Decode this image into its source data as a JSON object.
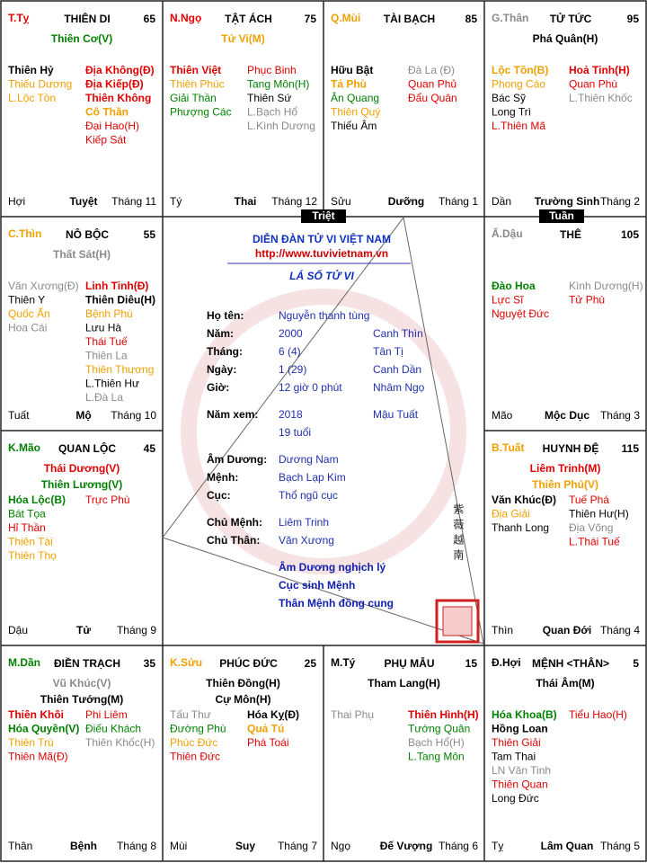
{
  "palaces": [
    {
      "canchi": {
        "text": "T.Tỵ",
        "color": "#e00000"
      },
      "name": "THIÊN DI",
      "number": 65,
      "main": [
        {
          "text": "Thiên Cơ(V)",
          "color": "#008000"
        }
      ],
      "left": [
        {
          "text": "Thiên Hỷ",
          "color": "#000000",
          "bold": true
        },
        {
          "text": "Thiếu Dương",
          "color": "#f0a000"
        },
        {
          "text": "L.Lộc Tồn",
          "color": "#f0a000"
        }
      ],
      "right": [
        {
          "text": "Địa Không(Đ)",
          "color": "#e00000",
          "bold": true
        },
        {
          "text": "Địa Kiếp(Đ)",
          "color": "#e00000",
          "bold": true
        },
        {
          "text": "Thiên Không",
          "color": "#e00000",
          "bold": true
        },
        {
          "text": "Cô Thần",
          "color": "#f0a000",
          "bold": true
        },
        {
          "text": "Đại Hao(H)",
          "color": "#e00000"
        },
        {
          "text": "Kiếp Sát",
          "color": "#e00000"
        }
      ],
      "branch": "Hợi",
      "stage": "Tuyệt",
      "month": "Tháng 11"
    },
    {
      "canchi": {
        "text": "N.Ngọ",
        "color": "#e00000"
      },
      "name": "TẬT ÁCH",
      "number": 75,
      "main": [
        {
          "text": "Tử Vi(M)",
          "color": "#f0a000"
        }
      ],
      "left": [
        {
          "text": "Thiên Việt",
          "color": "#e00000",
          "bold": true
        },
        {
          "text": "Thiên Phúc",
          "color": "#f0a000"
        },
        {
          "text": "Giải Thần",
          "color": "#008000"
        },
        {
          "text": "Phượng Các",
          "color": "#008000"
        }
      ],
      "right": [
        {
          "text": "Phục Binh",
          "color": "#e00000"
        },
        {
          "text": "Tang Môn(H)",
          "color": "#008000"
        },
        {
          "text": "Thiên Sứ",
          "color": "#000000"
        },
        {
          "text": "L.Bạch Hổ",
          "color": "#8a8a8a"
        },
        {
          "text": "L.Kình Dương",
          "color": "#8a8a8a"
        }
      ],
      "branch": "Tý",
      "stage": "Thai",
      "month": "Tháng 12"
    },
    {
      "canchi": {
        "text": "Q.Mùi",
        "color": "#f0a000"
      },
      "name": "TÀI BẠCH",
      "number": 85,
      "main": [],
      "left": [
        {
          "text": "Hữu Bật",
          "color": "#000000",
          "bold": true
        },
        {
          "text": "Tả Phù",
          "color": "#f0a000",
          "bold": true
        },
        {
          "text": "Ân Quang",
          "color": "#008000"
        },
        {
          "text": "Thiên Quý",
          "color": "#f0a000"
        },
        {
          "text": "Thiếu Âm",
          "color": "#000000"
        }
      ],
      "right": [
        {
          "text": "Đà La (Đ)",
          "color": "#8a8a8a"
        },
        {
          "text": "Quan Phủ",
          "color": "#e00000"
        },
        {
          "text": "Đẩu Quân",
          "color": "#e00000"
        }
      ],
      "branch": "Sửu",
      "stage": "Dưỡng",
      "month": "Tháng 1"
    },
    {
      "canchi": {
        "text": "G.Thân",
        "color": "#8a8a8a"
      },
      "name": "TỬ TỨC",
      "number": 95,
      "main": [
        {
          "text": "Phá Quân(H)",
          "color": "#000000"
        }
      ],
      "left": [
        {
          "text": "Lộc Tồn(B)",
          "color": "#f0a000",
          "bold": true
        },
        {
          "text": "Phong Cáo",
          "color": "#f0a000"
        },
        {
          "text": "Bác Sỹ",
          "color": "#000000"
        },
        {
          "text": "Long Trì",
          "color": "#000000"
        },
        {
          "text": "L.Thiên Mã",
          "color": "#e00000"
        }
      ],
      "right": [
        {
          "text": "Hoả Tinh(H)",
          "color": "#e00000",
          "bold": true
        },
        {
          "text": "Quan Phù",
          "color": "#e00000"
        },
        {
          "text": "L.Thiên Khốc",
          "color": "#8a8a8a"
        }
      ],
      "branch": "Dần",
      "stage": "Trường Sinh",
      "month": "Tháng 2"
    },
    {
      "canchi": {
        "text": "C.Thìn",
        "color": "#f0a000"
      },
      "name": "NÔ BỘC",
      "number": 55,
      "main": [
        {
          "text": "Thất Sát(H)",
          "color": "#8a8a8a"
        }
      ],
      "left": [
        {
          "text": "Văn Xương(Đ)",
          "color": "#8a8a8a"
        },
        {
          "text": "Thiên Y",
          "color": "#000000"
        },
        {
          "text": "Quốc Ấn",
          "color": "#f0a000"
        },
        {
          "text": "Hoa Cái",
          "color": "#8a8a8a"
        }
      ],
      "right": [
        {
          "text": "Linh Tinh(Đ)",
          "color": "#e00000",
          "bold": true
        },
        {
          "text": "Thiên Diêu(H)",
          "color": "#000000",
          "bold": true
        },
        {
          "text": "Bệnh Phù",
          "color": "#f0a000"
        },
        {
          "text": "Lưu Hà",
          "color": "#000000"
        },
        {
          "text": "Thái Tuế",
          "color": "#e00000"
        },
        {
          "text": "Thiên La",
          "color": "#8a8a8a"
        },
        {
          "text": "Thiên Thương",
          "color": "#f0a000"
        },
        {
          "text": "L.Thiên Hư",
          "color": "#000000"
        },
        {
          "text": "L.Đà La",
          "color": "#8a8a8a"
        }
      ],
      "branch": "Tuất",
      "stage": "Mộ",
      "month": "Tháng 10"
    },
    {
      "canchi": {
        "text": "Ấ.Dậu",
        "color": "#8a8a8a"
      },
      "name": "THÊ",
      "number": 105,
      "main": [],
      "left": [
        {
          "text": "Đào Hoa",
          "color": "#008000",
          "bold": true
        },
        {
          "text": "Lực Sĩ",
          "color": "#e00000"
        },
        {
          "text": "Nguyệt Đức",
          "color": "#e00000"
        }
      ],
      "right": [
        {
          "text": "Kình Dương(H)",
          "color": "#8a8a8a"
        },
        {
          "text": "Tử Phù",
          "color": "#e00000"
        }
      ],
      "branch": "Mão",
      "stage": "Mộc Dục",
      "month": "Tháng 3"
    },
    {
      "canchi": {
        "text": "K.Mão",
        "color": "#008000"
      },
      "name": "QUAN LỘC",
      "number": 45,
      "main": [
        {
          "text": "Thái Dương(V)",
          "color": "#e00000"
        },
        {
          "text": "Thiên Lương(V)",
          "color": "#008000"
        }
      ],
      "left": [
        {
          "text": "Hóa Lộc(B)",
          "color": "#008000",
          "bold": true
        },
        {
          "text": "Bát Tọa",
          "color": "#008000"
        },
        {
          "text": "Hỉ Thần",
          "color": "#e00000"
        },
        {
          "text": "Thiên Tài",
          "color": "#f0a000"
        },
        {
          "text": "Thiên Thọ",
          "color": "#f0a000"
        }
      ],
      "right": [
        {
          "text": "Trực Phù",
          "color": "#e00000"
        }
      ],
      "branch": "Dậu",
      "stage": "Tử",
      "month": "Tháng 9"
    },
    {
      "canchi": {
        "text": "B.Tuất",
        "color": "#f0a000"
      },
      "name": "HUYNH ĐỆ",
      "number": 115,
      "main": [
        {
          "text": "Liêm Trinh(M)",
          "color": "#e00000"
        },
        {
          "text": "Thiên Phủ(V)",
          "color": "#f0a000"
        }
      ],
      "left": [
        {
          "text": "Văn Khúc(Đ)",
          "color": "#000000",
          "bold": true
        },
        {
          "text": "Địa Giải",
          "color": "#f0a000"
        },
        {
          "text": "Thanh Long",
          "color": "#000000"
        }
      ],
      "right": [
        {
          "text": "Tuế Phá",
          "color": "#e00000"
        },
        {
          "text": "Thiên Hư(H)",
          "color": "#000000"
        },
        {
          "text": "Địa Võng",
          "color": "#8a8a8a"
        },
        {
          "text": "L.Thái Tuế",
          "color": "#e00000"
        }
      ],
      "branch": "Thìn",
      "stage": "Quan Đới",
      "month": "Tháng 4"
    },
    {
      "canchi": {
        "text": "M.Dần",
        "color": "#008000"
      },
      "name": "ĐIỀN TRẠCH",
      "number": 35,
      "main": [
        {
          "text": "Vũ Khúc(V)",
          "color": "#8a8a8a"
        },
        {
          "text": "Thiên Tướng(M)",
          "color": "#000000"
        }
      ],
      "left": [
        {
          "text": "Thiên Khôi",
          "color": "#e00000",
          "bold": true
        },
        {
          "text": "Hóa Quyền(V)",
          "color": "#008000",
          "bold": true
        },
        {
          "text": "Thiên Trù",
          "color": "#f0a000"
        },
        {
          "text": "Thiên Mã(Đ)",
          "color": "#e00000"
        }
      ],
      "right": [
        {
          "text": "Phi Liêm",
          "color": "#e00000"
        },
        {
          "text": "Điếu Khách",
          "color": "#008000"
        },
        {
          "text": "Thiên Khốc(H)",
          "color": "#8a8a8a"
        }
      ],
      "branch": "Thân",
      "stage": "Bệnh",
      "month": "Tháng 8"
    },
    {
      "canchi": {
        "text": "K.Sửu",
        "color": "#f0a000"
      },
      "name": "PHÚC ĐỨC",
      "number": 25,
      "main": [
        {
          "text": "Thiên Đồng(H)",
          "color": "#000000"
        },
        {
          "text": "Cự Môn(H)",
          "color": "#000000"
        }
      ],
      "left": [
        {
          "text": "Tấu Thư",
          "color": "#8a8a8a"
        },
        {
          "text": "Đường Phù",
          "color": "#008000"
        },
        {
          "text": "Phúc Đức",
          "color": "#f0a000"
        },
        {
          "text": "Thiên Đức",
          "color": "#e00000"
        }
      ],
      "right": [
        {
          "text": "Hóa Kỵ(Đ)",
          "color": "#000000",
          "bold": true
        },
        {
          "text": "Quả Tú",
          "color": "#f0a000",
          "bold": true
        },
        {
          "text": "Phá Toái",
          "color": "#e00000"
        }
      ],
      "branch": "Mùi",
      "stage": "Suy",
      "month": "Tháng 7"
    },
    {
      "canchi": {
        "text": "M.Tý",
        "color": "#000000"
      },
      "name": "PHỤ MẪU",
      "number": 15,
      "main": [
        {
          "text": "Tham Lang(H)",
          "color": "#000000"
        }
      ],
      "left": [
        {
          "text": "Thai Phụ",
          "color": "#8a8a8a"
        }
      ],
      "right": [
        {
          "text": "Thiên Hình(H)",
          "color": "#e00000",
          "bold": true
        },
        {
          "text": "Tướng Quân",
          "color": "#008000"
        },
        {
          "text": "Bạch Hổ(H)",
          "color": "#8a8a8a"
        },
        {
          "text": "L.Tang Môn",
          "color": "#008000"
        }
      ],
      "branch": "Ngọ",
      "stage": "Đế Vượng",
      "month": "Tháng 6"
    },
    {
      "canchi": {
        "text": "Đ.Hợi",
        "color": "#000000"
      },
      "name": "MỆNH <THÂN>",
      "number": 5,
      "main": [
        {
          "text": "Thái Âm(M)",
          "color": "#000000"
        }
      ],
      "left": [
        {
          "text": "Hóa Khoa(B)",
          "color": "#008000",
          "bold": true
        },
        {
          "text": "Hồng Loan",
          "color": "#000000",
          "bold": true
        },
        {
          "text": "Thiên Giải",
          "color": "#e00000"
        },
        {
          "text": "Tam Thai",
          "color": "#000000"
        },
        {
          "text": "LN Văn Tinh",
          "color": "#8a8a8a"
        },
        {
          "text": "Thiên Quan",
          "color": "#e00000"
        },
        {
          "text": "Long Đức",
          "color": "#000000"
        }
      ],
      "right": [
        {
          "text": "Tiểu Hao(H)",
          "color": "#e00000"
        }
      ],
      "branch": "Tỵ",
      "stage": "Lâm Quan",
      "month": "Tháng 5"
    }
  ],
  "center": {
    "title": "DIỄN ĐÀN TỬ VI VIỆT NAM",
    "url": "http://www.tuvivietnam.vn",
    "subtitle": "LÁ SỐ TỬ VI",
    "info": [
      {
        "label": "Họ tên:",
        "value": "Nguyễn thanh tùng"
      },
      {
        "label": "Năm:",
        "value": "2000",
        "extra": "Canh Thìn"
      },
      {
        "label": "Tháng:",
        "value": "6 (4)",
        "extra": "Tân Tị"
      },
      {
        "label": "Ngày:",
        "value": "1 (29)",
        "extra": "Canh Dần"
      },
      {
        "label": "Giờ:",
        "value": "12 giờ 0 phút",
        "extra": "Nhâm Ngọ"
      },
      {
        "label": "Năm xem:",
        "value": "2018",
        "extra": "Mậu Tuất"
      },
      {
        "value": "19 tuổi"
      },
      {
        "label": "Âm Dương:",
        "value": "Dương Nam"
      },
      {
        "label": "Mệnh:",
        "value": "Bạch Lạp Kim"
      },
      {
        "label": "Cục:",
        "value": "Thổ ngũ cục"
      },
      {
        "label": "Chủ Mệnh:",
        "value": "Liêm Trinh"
      },
      {
        "label": "Chủ Thân:",
        "value": "Văn Xương"
      }
    ],
    "notes": [
      "Âm Dương nghịch lý",
      "Cục sinh Mệnh",
      "Thân Mệnh đồng cung"
    ],
    "seal_text": "紫薇越南",
    "triet": "Triệt",
    "tuan": "Tuần"
  }
}
